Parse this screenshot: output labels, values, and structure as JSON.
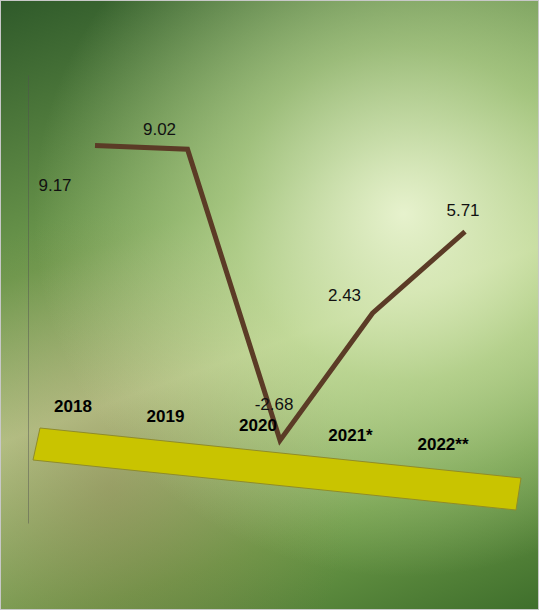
{
  "chart_data": {
    "type": "line",
    "categories": [
      "2018",
      "2019",
      "2020",
      "2021*",
      "2022**"
    ],
    "values": [
      9.17,
      9.02,
      -2.68,
      2.43,
      5.71
    ],
    "color": "#5b3b26",
    "ylim": [
      -6,
      12
    ],
    "data_labels": true,
    "tick_labels": "x"
  }
}
